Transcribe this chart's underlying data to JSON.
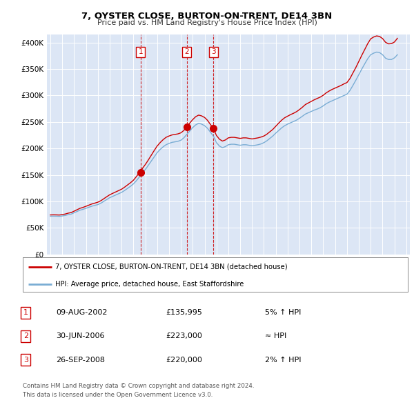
{
  "title": "7, OYSTER CLOSE, BURTON-ON-TRENT, DE14 3BN",
  "subtitle": "Price paid vs. HM Land Registry's House Price Index (HPI)",
  "legend_label_red": "7, OYSTER CLOSE, BURTON-ON-TRENT, DE14 3BN (detached house)",
  "legend_label_blue": "HPI: Average price, detached house, East Staffordshire",
  "footer1": "Contains HM Land Registry data © Crown copyright and database right 2024.",
  "footer2": "This data is licensed under the Open Government Licence v3.0.",
  "background_color": "#dce6f5",
  "yticks": [
    0,
    50000,
    100000,
    150000,
    200000,
    250000,
    300000,
    350000,
    400000
  ],
  "ylabels": [
    "£0",
    "£50K",
    "£100K",
    "£150K",
    "£200K",
    "£250K",
    "£300K",
    "£350K",
    "£400K"
  ],
  "ylim": [
    0,
    415000
  ],
  "transactions": [
    {
      "num": 1,
      "date": "09-AUG-2002",
      "price": 135995,
      "hpi_rel": "5% ↑ HPI",
      "x_year": 2002.6
    },
    {
      "num": 2,
      "date": "30-JUN-2006",
      "price": 223000,
      "hpi_rel": "≈ HPI",
      "x_year": 2006.5
    },
    {
      "num": 3,
      "date": "26-SEP-2008",
      "price": 220000,
      "hpi_rel": "2% ↑ HPI",
      "x_year": 2008.75
    }
  ],
  "hpi_data": {
    "years": [
      1995.0,
      1995.25,
      1995.5,
      1995.75,
      1996.0,
      1996.25,
      1996.5,
      1996.75,
      1997.0,
      1997.25,
      1997.5,
      1997.75,
      1998.0,
      1998.25,
      1998.5,
      1998.75,
      1999.0,
      1999.25,
      1999.5,
      1999.75,
      2000.0,
      2000.25,
      2000.5,
      2000.75,
      2001.0,
      2001.25,
      2001.5,
      2001.75,
      2002.0,
      2002.25,
      2002.5,
      2002.75,
      2003.0,
      2003.25,
      2003.5,
      2003.75,
      2004.0,
      2004.25,
      2004.5,
      2004.75,
      2005.0,
      2005.25,
      2005.5,
      2005.75,
      2006.0,
      2006.25,
      2006.5,
      2006.75,
      2007.0,
      2007.25,
      2007.5,
      2007.75,
      2008.0,
      2008.25,
      2008.5,
      2008.75,
      2009.0,
      2009.25,
      2009.5,
      2009.75,
      2010.0,
      2010.25,
      2010.5,
      2010.75,
      2011.0,
      2011.25,
      2011.5,
      2011.75,
      2012.0,
      2012.25,
      2012.5,
      2012.75,
      2013.0,
      2013.25,
      2013.5,
      2013.75,
      2014.0,
      2014.25,
      2014.5,
      2014.75,
      2015.0,
      2015.25,
      2015.5,
      2015.75,
      2016.0,
      2016.25,
      2016.5,
      2016.75,
      2017.0,
      2017.25,
      2017.5,
      2017.75,
      2018.0,
      2018.25,
      2018.5,
      2018.75,
      2019.0,
      2019.25,
      2019.5,
      2019.75,
      2020.0,
      2020.25,
      2020.5,
      2020.75,
      2021.0,
      2021.25,
      2021.5,
      2021.75,
      2022.0,
      2022.25,
      2022.5,
      2022.75,
      2023.0,
      2023.25,
      2023.5,
      2023.75,
      2024.0,
      2024.25
    ],
    "values": [
      72000,
      72200,
      72100,
      71800,
      72500,
      73500,
      75000,
      76000,
      78500,
      81000,
      83500,
      85000,
      87000,
      89000,
      91000,
      92500,
      94000,
      96500,
      100000,
      103500,
      107000,
      109500,
      112000,
      114500,
      117000,
      120500,
      124500,
      128500,
      133000,
      139000,
      146000,
      153000,
      160000,
      168000,
      176000,
      184000,
      192000,
      198000,
      203000,
      207000,
      209500,
      211500,
      212500,
      213500,
      215500,
      220000,
      226500,
      233000,
      239500,
      244500,
      247500,
      246000,
      243000,
      238000,
      230500,
      223000,
      211000,
      204500,
      201500,
      203500,
      207000,
      208000,
      208000,
      207000,
      206000,
      207000,
      207000,
      206000,
      205000,
      206000,
      207000,
      208500,
      211000,
      214500,
      219000,
      223500,
      229000,
      234000,
      239000,
      243000,
      246000,
      248500,
      251000,
      253500,
      257000,
      261000,
      265000,
      267500,
      270000,
      272500,
      274500,
      277000,
      280500,
      284500,
      287500,
      290000,
      292500,
      295000,
      297500,
      300000,
      302500,
      309500,
      319000,
      329000,
      339500,
      350000,
      360000,
      369500,
      377000,
      380000,
      382000,
      381000,
      377000,
      370500,
      368000,
      368000,
      371000,
      377000
    ]
  },
  "red_data": {
    "years": [
      1995.0,
      1995.25,
      1995.5,
      1995.75,
      1996.0,
      1996.25,
      1996.5,
      1996.75,
      1997.0,
      1997.25,
      1997.5,
      1997.75,
      1998.0,
      1998.25,
      1998.5,
      1998.75,
      1999.0,
      1999.25,
      1999.5,
      1999.75,
      2000.0,
      2000.25,
      2000.5,
      2000.75,
      2001.0,
      2001.25,
      2001.5,
      2001.75,
      2002.0,
      2002.25,
      2002.5,
      2002.75,
      2003.0,
      2003.25,
      2003.5,
      2003.75,
      2004.0,
      2004.25,
      2004.5,
      2004.75,
      2005.0,
      2005.25,
      2005.5,
      2005.75,
      2006.0,
      2006.25,
      2006.5,
      2006.75,
      2007.0,
      2007.25,
      2007.5,
      2007.75,
      2008.0,
      2008.25,
      2008.5,
      2008.75,
      2009.0,
      2009.25,
      2009.5,
      2009.75,
      2010.0,
      2010.25,
      2010.5,
      2010.75,
      2011.0,
      2011.25,
      2011.5,
      2011.75,
      2012.0,
      2012.25,
      2012.5,
      2012.75,
      2013.0,
      2013.25,
      2013.5,
      2013.75,
      2014.0,
      2014.25,
      2014.5,
      2014.75,
      2015.0,
      2015.25,
      2015.5,
      2015.75,
      2016.0,
      2016.25,
      2016.5,
      2016.75,
      2017.0,
      2017.25,
      2017.5,
      2017.75,
      2018.0,
      2018.25,
      2018.5,
      2018.75,
      2019.0,
      2019.25,
      2019.5,
      2019.75,
      2020.0,
      2020.25,
      2020.5,
      2020.75,
      2021.0,
      2021.25,
      2021.5,
      2021.75,
      2022.0,
      2022.25,
      2022.5,
      2022.75,
      2023.0,
      2023.25,
      2023.5,
      2023.75,
      2024.0,
      2024.25
    ],
    "values": [
      74500,
      74700,
      74600,
      74300,
      75100,
      76200,
      77800,
      78900,
      81600,
      84300,
      87000,
      88700,
      90800,
      93000,
      95200,
      96800,
      98500,
      101200,
      105000,
      108800,
      112500,
      115200,
      117800,
      120400,
      123000,
      126800,
      131000,
      135200,
      140000,
      146800,
      154500,
      162000,
      169500,
      178000,
      187000,
      196000,
      204500,
      211000,
      216500,
      221000,
      223500,
      225500,
      226500,
      227500,
      229500,
      234000,
      241000,
      248000,
      254500,
      260000,
      263000,
      261500,
      258500,
      253000,
      245000,
      237500,
      224500,
      217500,
      214000,
      216000,
      220000,
      221000,
      221000,
      220000,
      219000,
      220000,
      220000,
      219000,
      218000,
      219000,
      220000,
      221500,
      223500,
      227000,
      231500,
      236000,
      242000,
      248000,
      253500,
      258000,
      261000,
      264000,
      266500,
      269500,
      273500,
      278000,
      283000,
      286000,
      289000,
      292000,
      294500,
      297000,
      300500,
      305000,
      308500,
      311500,
      314000,
      316500,
      319000,
      322000,
      324500,
      332000,
      342500,
      353000,
      364500,
      376000,
      387000,
      398000,
      407000,
      410500,
      412500,
      411500,
      407500,
      400500,
      397500,
      398000,
      401000,
      408000
    ]
  },
  "xtick_years": [
    1995,
    1996,
    1997,
    1998,
    1999,
    2000,
    2001,
    2002,
    2003,
    2004,
    2005,
    2006,
    2007,
    2008,
    2009,
    2010,
    2011,
    2012,
    2013,
    2014,
    2015,
    2016,
    2017,
    2018,
    2019,
    2020,
    2021,
    2022,
    2023,
    2024,
    2025
  ]
}
